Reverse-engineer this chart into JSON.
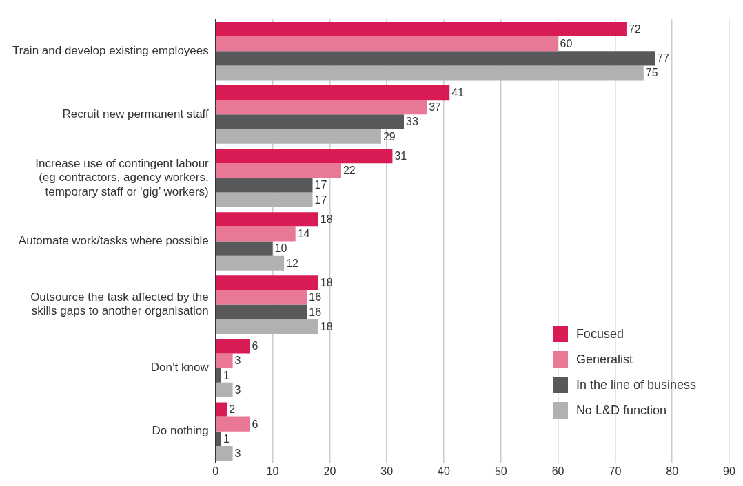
{
  "chart_data": {
    "type": "bar",
    "orientation": "horizontal",
    "categories": [
      "Train and develop existing employees",
      "Recruit new permanent staff",
      "Increase use of contingent labour (eg contractors, agency workers, temporary staff or ‘gig’ workers)",
      "Automate work/tasks where possible",
      "Outsource the task affected by the skills gaps to another organisation",
      "Don’t know",
      "Do nothing"
    ],
    "series": [
      {
        "name": "Focused",
        "color": "#d81b55",
        "values": [
          72,
          41,
          31,
          18,
          18,
          6,
          2
        ]
      },
      {
        "name": "Generalist",
        "color": "#e97896",
        "values": [
          60,
          37,
          22,
          14,
          16,
          3,
          6
        ]
      },
      {
        "name": "In the line of business",
        "color": "#58595b",
        "values": [
          77,
          33,
          17,
          10,
          16,
          1,
          1
        ]
      },
      {
        "name": "No L&D function",
        "color": "#b1b1b3",
        "values": [
          75,
          29,
          17,
          12,
          18,
          3,
          3
        ]
      }
    ],
    "xlim": [
      0,
      90
    ],
    "xticks": [
      0,
      10,
      20,
      30,
      40,
      50,
      60,
      70,
      80,
      90
    ],
    "grid": "x",
    "legend": "bottom right",
    "data_labels": true
  }
}
